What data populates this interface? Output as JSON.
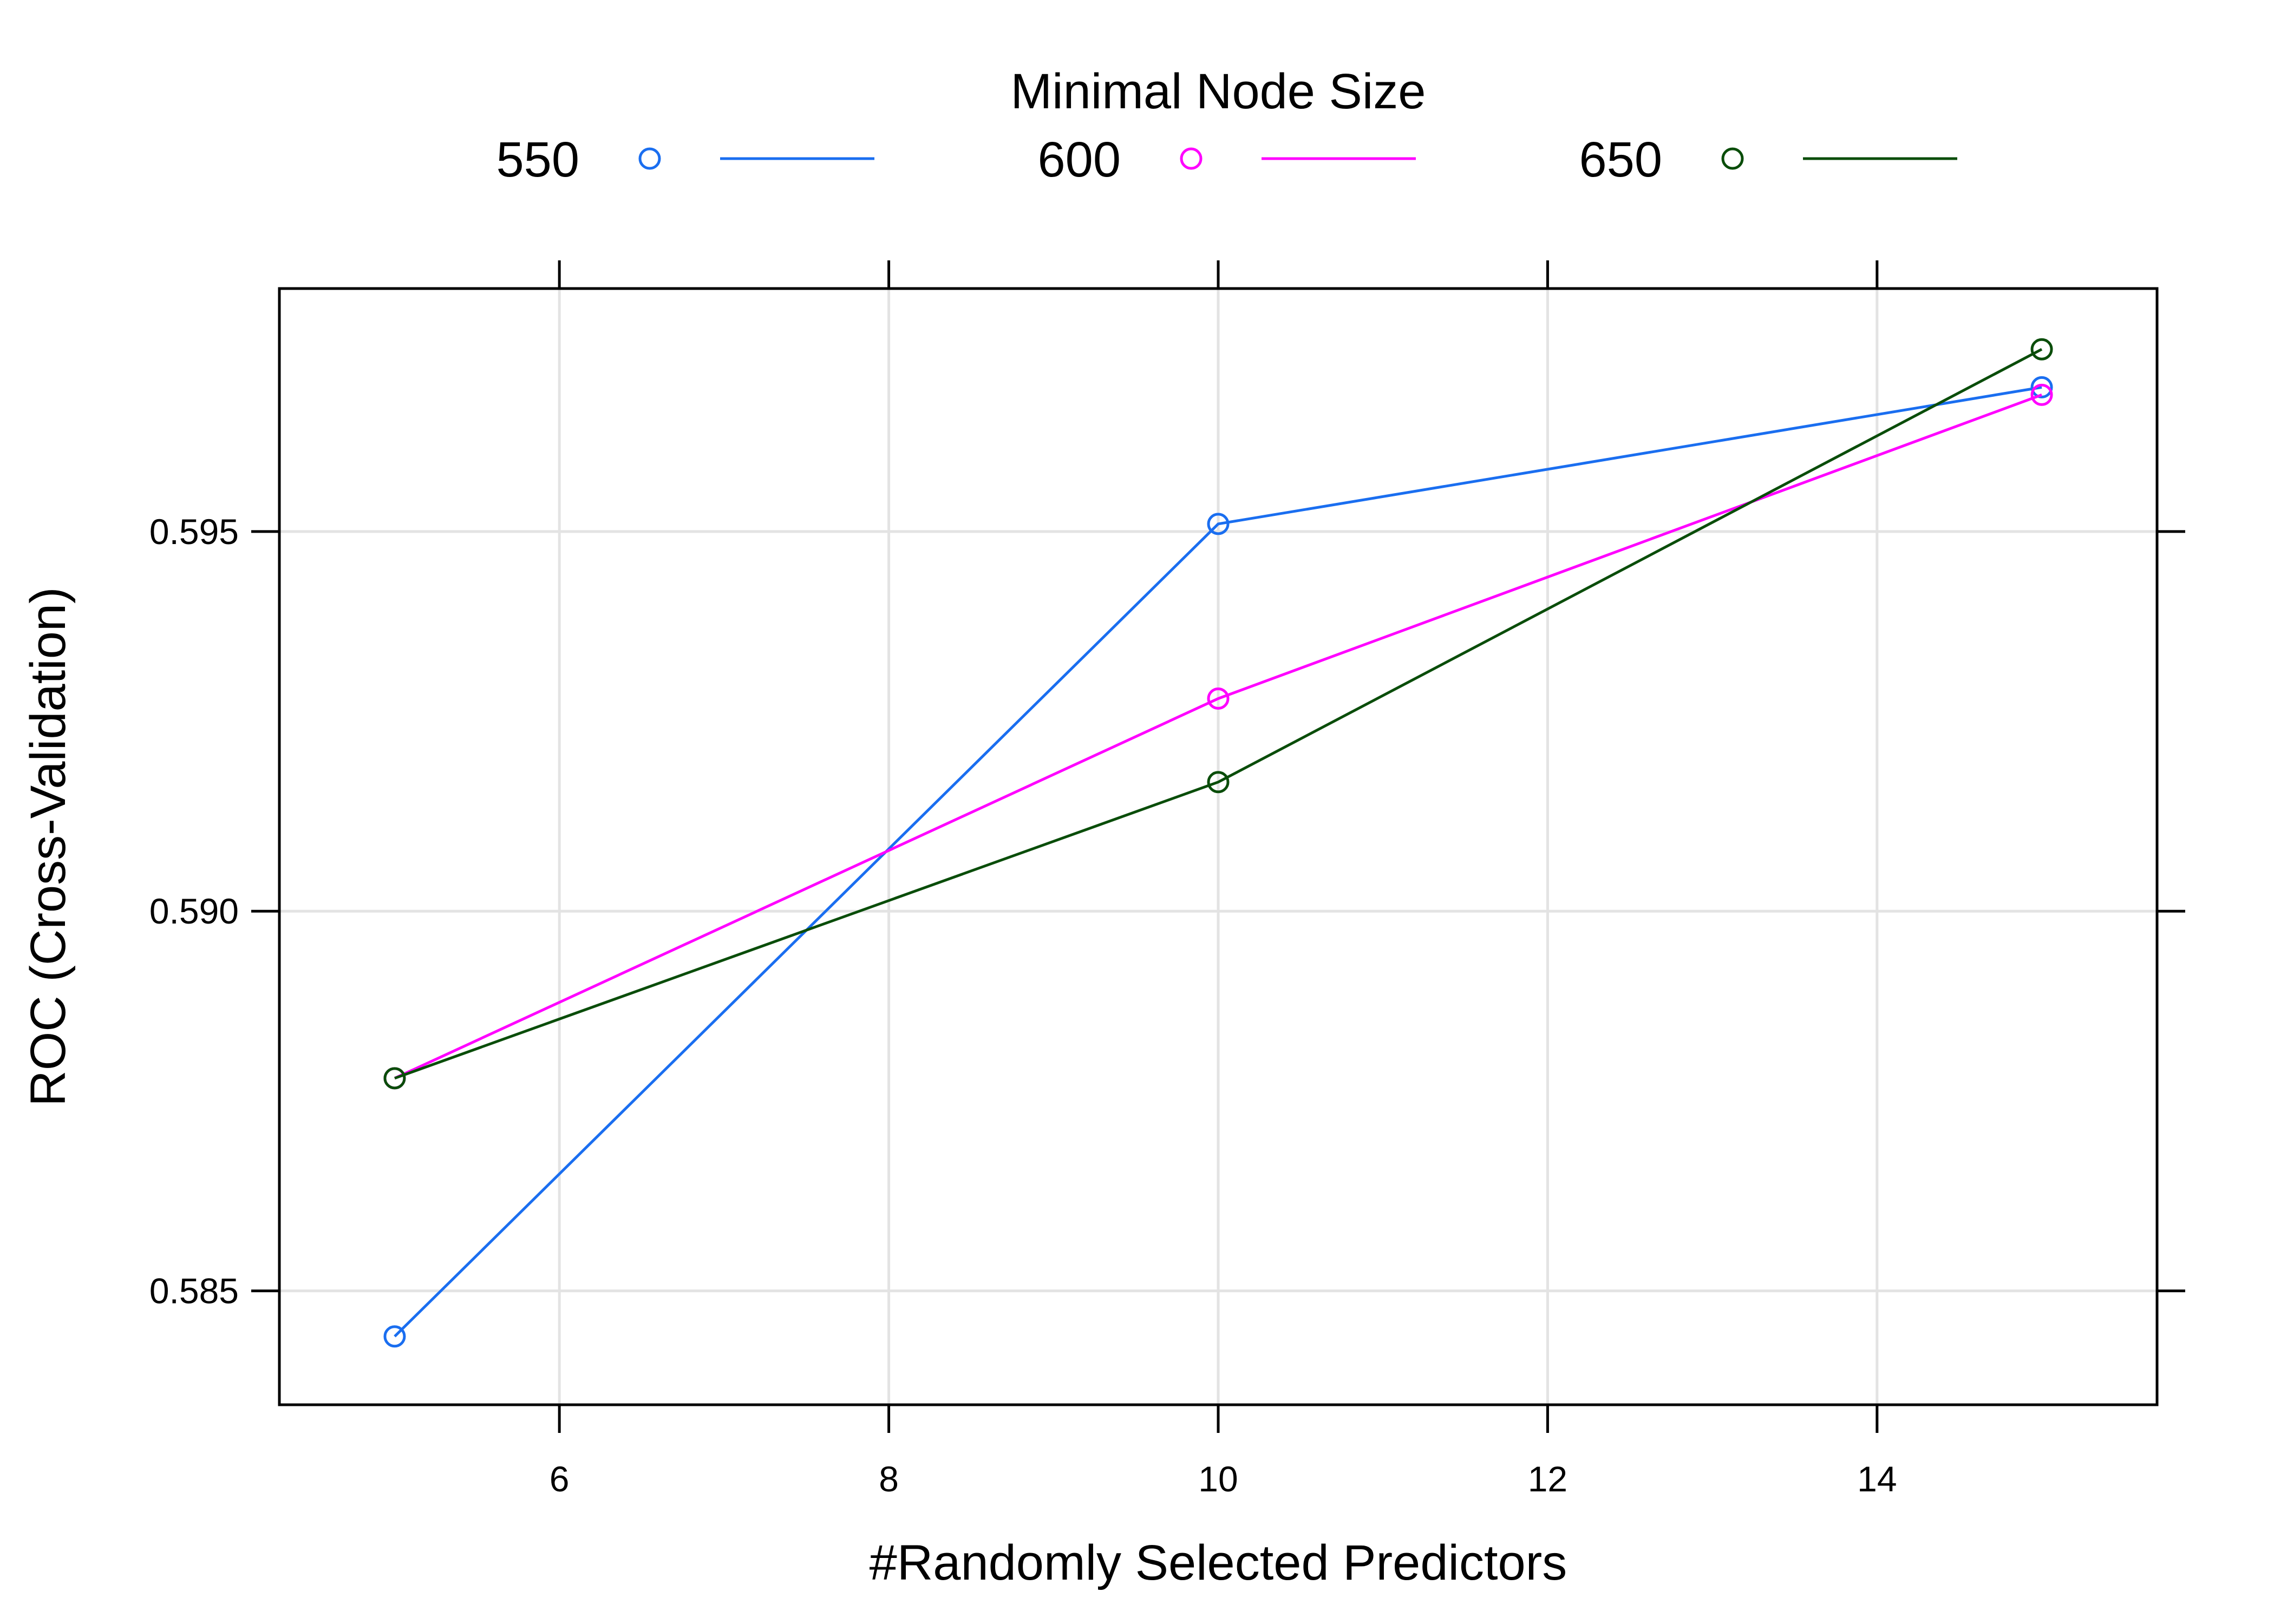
{
  "chart_data": {
    "type": "line",
    "title": "",
    "legend": {
      "title": "Minimal Node Size",
      "placement": "top"
    },
    "xlabel": "#Randomly Selected Predictors",
    "ylabel": "ROC (Cross-Validation)",
    "xlim": [
      4.3,
      15.7
    ],
    "ylim": [
      0.5835,
      0.5982
    ],
    "xticks": [
      6,
      8,
      10,
      12,
      14
    ],
    "yticks": [
      0.585,
      0.59,
      0.595
    ],
    "xtick_labels": [
      "6",
      "8",
      "10",
      "12",
      "14"
    ],
    "ytick_labels": [
      "0.585",
      "0.590",
      "0.595"
    ],
    "grid": true,
    "x": [
      5,
      10,
      15
    ],
    "series": [
      {
        "name": "550",
        "color": "#1a6ef0",
        "values": [
          0.5844,
          0.5951,
          0.5969
        ]
      },
      {
        "name": "600",
        "color": "#ff00ff",
        "values": [
          0.5878,
          0.5928,
          0.5968
        ]
      },
      {
        "name": "650",
        "color": "#0a4d0a",
        "values": [
          0.5878,
          0.5917,
          0.5974
        ]
      }
    ]
  }
}
